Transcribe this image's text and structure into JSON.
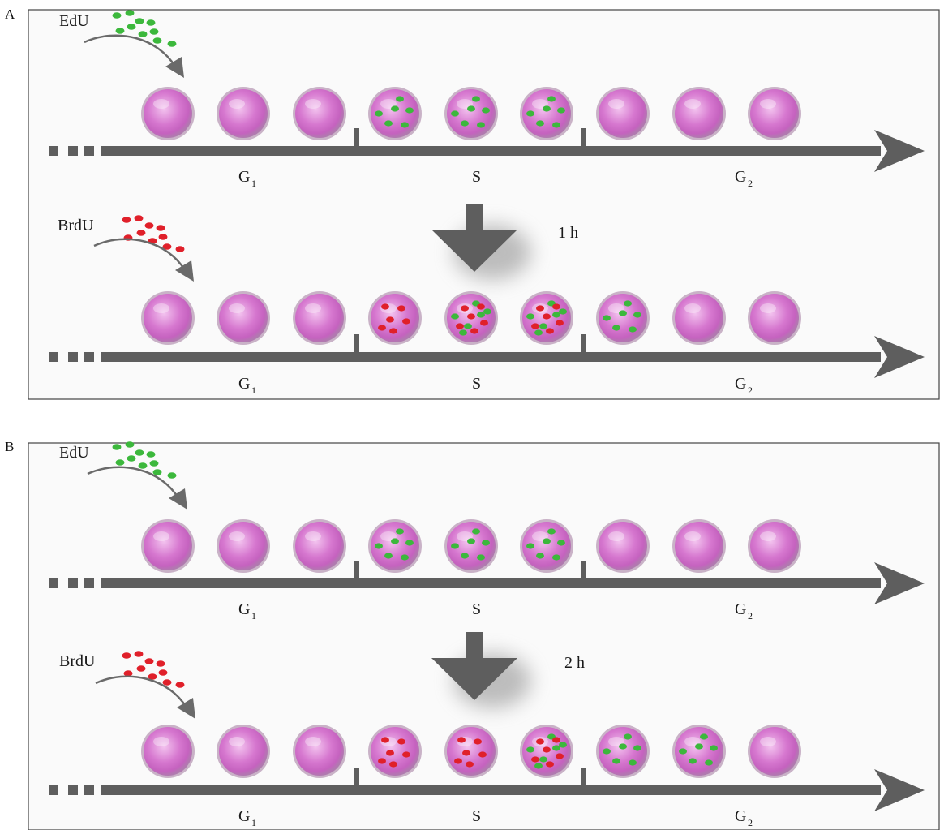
{
  "figure": {
    "panels": [
      {
        "letter": "A",
        "top_agent": "EdU",
        "bottom_agent": "BrdU",
        "interval": "1 h",
        "phases": {
          "g1_main": "G",
          "g1_sub": "1",
          "s": "S",
          "g2_main": "G",
          "g2_sub": "2"
        },
        "top_row": [
          "plain",
          "plain",
          "plain",
          "green",
          "green",
          "green",
          "plain",
          "plain",
          "plain"
        ],
        "bottom_row": [
          "plain",
          "plain",
          "plain",
          "red",
          "mixed",
          "mixed",
          "green",
          "plain",
          "plain"
        ]
      },
      {
        "letter": "B",
        "top_agent": "EdU",
        "bottom_agent": "BrdU",
        "interval": "2 h",
        "phases": {
          "g1_main": "G",
          "g1_sub": "1",
          "s": "S",
          "g2_main": "G",
          "g2_sub": "2"
        },
        "top_row": [
          "plain",
          "plain",
          "plain",
          "green",
          "green",
          "green",
          "plain",
          "plain",
          "plain"
        ],
        "bottom_row": [
          "plain",
          "plain",
          "plain",
          "red",
          "red",
          "mixed",
          "green",
          "green",
          "plain"
        ]
      }
    ]
  },
  "colors": {
    "edu": "#3cb83c",
    "brdu": "#e0202a",
    "arrow": "#5e5e5e",
    "cell_core": "#d070c8",
    "cell_rim": "#b89ab6",
    "panel_bg": "#fafafa",
    "panel_border": "#444444"
  }
}
